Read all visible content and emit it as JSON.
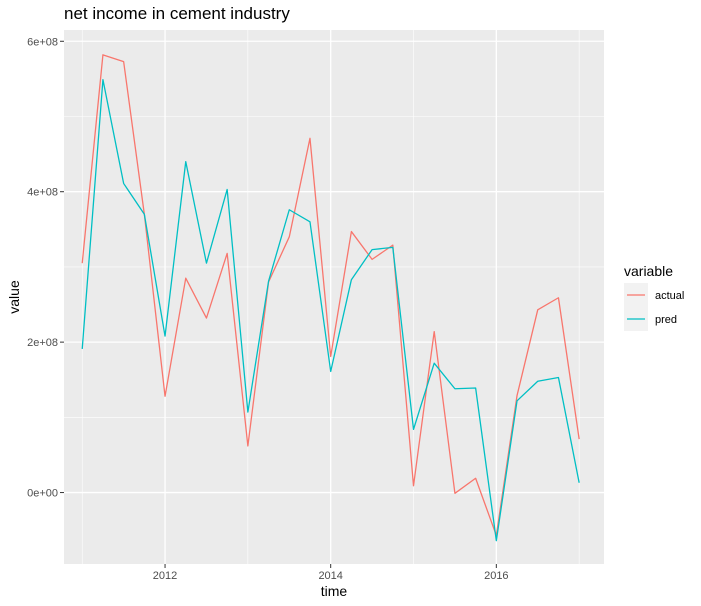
{
  "chart_data": {
    "type": "line",
    "title": "net income in cement industry",
    "xlabel": "time",
    "ylabel": "value",
    "xlim": [
      2010.78,
      2017.3
    ],
    "ylim": [
      -95000000,
      615000000
    ],
    "x_ticks": [
      2012,
      2014,
      2016
    ],
    "x_tick_labels": [
      "2012",
      "2014",
      "2016"
    ],
    "y_ticks": [
      0,
      200000000,
      400000000,
      600000000
    ],
    "y_tick_labels": [
      "0e+00",
      "2e+08",
      "4e+08",
      "6e+08"
    ],
    "grid": true,
    "legend": {
      "title": "variable",
      "position": "right"
    },
    "x": [
      2011.0,
      2011.25,
      2011.5,
      2011.75,
      2012.0,
      2012.25,
      2012.5,
      2012.75,
      2013.0,
      2013.25,
      2013.5,
      2013.75,
      2014.0,
      2014.25,
      2014.5,
      2014.75,
      2015.0,
      2015.25,
      2015.5,
      2015.75,
      2016.0,
      2016.25,
      2016.5,
      2016.75,
      2017.0
    ],
    "series": [
      {
        "name": "actual",
        "color": "#F8766D",
        "values": [
          305000000,
          582000000,
          573000000,
          370000000,
          128000000,
          285000000,
          232000000,
          318000000,
          62000000,
          280000000,
          340000000,
          471000000,
          181000000,
          347000000,
          310000000,
          329000000,
          9000000,
          214000000,
          -1000000,
          19000000,
          -57000000,
          129000000,
          243000000,
          259000000,
          71000000
        ]
      },
      {
        "name": "pred",
        "color": "#00BFC4",
        "values": [
          191000000,
          549000000,
          411000000,
          370000000,
          208000000,
          440000000,
          305000000,
          403000000,
          107000000,
          281000000,
          376000000,
          360000000,
          161000000,
          283000000,
          323000000,
          326000000,
          84000000,
          172000000,
          138000000,
          139000000,
          -64000000,
          122000000,
          148000000,
          153000000,
          13000000
        ]
      }
    ]
  }
}
